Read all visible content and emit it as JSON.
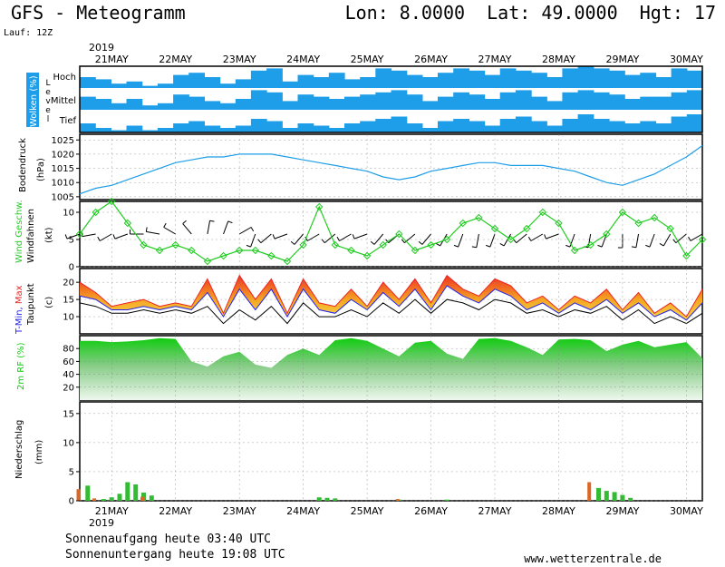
{
  "header": {
    "title": "GFS - Meteogramm",
    "location": "Lon: 8.0000  Lat: 49.0000  Hgt: 17",
    "run": "Lauf: 12Z"
  },
  "footer": {
    "sunrise": "Sonnenaufgang heute 03:40 UTC",
    "sunset": "Sonnenuntergang heute 19:08 UTC",
    "site": "www.wetterzentrale.de"
  },
  "colors": {
    "cloud": "#1e9ee8",
    "pressure": "#1e9ee8",
    "wind": "#22cc22",
    "tmin": "#2222ee",
    "tmax": "#ee2222",
    "humidity": "#11cc11",
    "precip_rain": "#33bb33",
    "precip_conv": "#dd6622",
    "grid": "#888888"
  },
  "chart_data": [
    {
      "type": "table",
      "id": "date-axis",
      "year_label": "2019",
      "days": [
        "21MAY",
        "22MAY",
        "23MAY",
        "24MAY",
        "25MAY",
        "26MAY",
        "27MAY",
        "28MAY",
        "29MAY",
        "30MAY"
      ],
      "x_range_hours": [
        0,
        234
      ]
    },
    {
      "type": "heatmap",
      "id": "clouds",
      "ylabel": "Wolken (%)",
      "ylabel_parts": [
        "Wolken",
        " (%)"
      ],
      "level_label": "Level",
      "level_label_letters": [
        "L",
        "e",
        "v",
        "e",
        "l"
      ],
      "levels": [
        "Hoch",
        "Mittel",
        "Tief"
      ],
      "hours": [
        0,
        6,
        12,
        18,
        24,
        30,
        36,
        42,
        48,
        54,
        60,
        66,
        72,
        78,
        84,
        90,
        96,
        102,
        108,
        114,
        120,
        126,
        132,
        138,
        144,
        150,
        156,
        162,
        168,
        174,
        180,
        186,
        192,
        198,
        204,
        210,
        216,
        222,
        228,
        234
      ],
      "coverage": {
        "Hoch": [
          0.5,
          0.4,
          0.2,
          0.3,
          0.1,
          0.2,
          0.6,
          0.7,
          0.5,
          0.2,
          0.4,
          0.8,
          0.9,
          0.3,
          0.6,
          0.5,
          0.7,
          0.4,
          0.5,
          0.9,
          0.8,
          0.6,
          0.5,
          0.7,
          0.9,
          0.8,
          0.6,
          0.9,
          0.8,
          0.7,
          0.5,
          0.9,
          1.0,
          0.9,
          0.8,
          0.6,
          0.7,
          0.5,
          0.9,
          0.8
        ],
        "Mittel": [
          0.6,
          0.5,
          0.3,
          0.5,
          0.2,
          0.3,
          0.7,
          0.6,
          0.4,
          0.3,
          0.5,
          0.9,
          0.8,
          0.4,
          0.7,
          0.6,
          0.5,
          0.6,
          0.7,
          0.8,
          0.9,
          0.7,
          0.4,
          0.6,
          0.8,
          0.7,
          0.5,
          0.8,
          0.9,
          0.6,
          0.4,
          0.8,
          0.9,
          0.8,
          0.7,
          0.5,
          0.6,
          0.6,
          0.8,
          0.9
        ],
        "Tief": [
          0.4,
          0.2,
          0.1,
          0.3,
          0.1,
          0.2,
          0.4,
          0.5,
          0.3,
          0.2,
          0.3,
          0.6,
          0.5,
          0.2,
          0.4,
          0.3,
          0.2,
          0.4,
          0.5,
          0.6,
          0.7,
          0.4,
          0.2,
          0.5,
          0.6,
          0.5,
          0.3,
          0.6,
          0.7,
          0.5,
          0.3,
          0.6,
          0.8,
          0.6,
          0.5,
          0.4,
          0.5,
          0.4,
          0.7,
          0.8
        ]
      }
    },
    {
      "type": "line",
      "id": "pressure",
      "ylabel": "Bodendruck",
      "ylabel2": "(hPa)",
      "ylim": [
        1004,
        1027
      ],
      "yticks": [
        1005,
        1010,
        1015,
        1020,
        1025
      ],
      "grid": true,
      "x": [
        0,
        6,
        12,
        18,
        24,
        30,
        36,
        42,
        48,
        54,
        60,
        66,
        72,
        78,
        84,
        90,
        96,
        102,
        108,
        114,
        120,
        126,
        132,
        138,
        144,
        150,
        156,
        162,
        168,
        174,
        180,
        186,
        192,
        198,
        204,
        210,
        216,
        222,
        228,
        234
      ],
      "series": [
        {
          "values": [
            1006,
            1008,
            1009,
            1011,
            1013,
            1015,
            1017,
            1018,
            1019,
            1019,
            1020,
            1020,
            1020,
            1019,
            1018,
            1017,
            1016,
            1015,
            1014,
            1012,
            1011,
            1012,
            1014,
            1015,
            1016,
            1017,
            1017,
            1016,
            1016,
            1016,
            1015,
            1014,
            1012,
            1010,
            1009,
            1011,
            1013,
            1016,
            1019,
            1023
          ]
        }
      ]
    },
    {
      "type": "line",
      "id": "wind",
      "ylabel": "Wind Geschw.",
      "ylabel2": "Windfahnen",
      "ylabel3": "(kt)",
      "ylim": [
        0,
        12
      ],
      "yticks": [
        0,
        5,
        10
      ],
      "grid": true,
      "x": [
        0,
        6,
        12,
        18,
        24,
        30,
        36,
        42,
        48,
        54,
        60,
        66,
        72,
        78,
        84,
        90,
        96,
        102,
        108,
        114,
        120,
        126,
        132,
        138,
        144,
        150,
        156,
        162,
        168,
        174,
        180,
        186,
        192,
        198,
        204,
        210,
        216,
        222,
        228,
        234
      ],
      "series": [
        {
          "name": "Wind Geschw.",
          "values": [
            6,
            10,
            12,
            8,
            4,
            3,
            4,
            3,
            1,
            2,
            3,
            3,
            2,
            1,
            4,
            11,
            4,
            3,
            2,
            4,
            6,
            3,
            4,
            5,
            8,
            9,
            7,
            5,
            7,
            10,
            8,
            3,
            4,
            6,
            10,
            8,
            9,
            7,
            2,
            5
          ]
        }
      ],
      "barbs_direction_deg": [
        250,
        260,
        240,
        250,
        270,
        280,
        300,
        320,
        10,
        20,
        60,
        200,
        230,
        250,
        220,
        240,
        230,
        240,
        250,
        220,
        230,
        230,
        220,
        210,
        200,
        190,
        200,
        210,
        230,
        240,
        250,
        200,
        190,
        200,
        180,
        190,
        200,
        210,
        230,
        240
      ]
    },
    {
      "type": "area",
      "id": "temperature",
      "ylabel": "T-Min, Max",
      "ylabel_parts": [
        "T-Min",
        ", ",
        "Max"
      ],
      "ylabel2": "Taupunkt",
      "ylabel3": "(c)",
      "ylim": [
        5,
        24
      ],
      "yticks": [
        10,
        15,
        20
      ],
      "grid": true,
      "x": [
        0,
        6,
        12,
        18,
        24,
        30,
        36,
        42,
        48,
        54,
        60,
        66,
        72,
        78,
        84,
        90,
        96,
        102,
        108,
        114,
        120,
        126,
        132,
        138,
        144,
        150,
        156,
        162,
        168,
        174,
        180,
        186,
        192,
        198,
        204,
        210,
        216,
        222,
        228,
        234
      ],
      "series": [
        {
          "name": "T-Max",
          "values": [
            20,
            17,
            13,
            14,
            15,
            13,
            14,
            13,
            21,
            11,
            22,
            15,
            21,
            11,
            21,
            14,
            13,
            18,
            13,
            20,
            15,
            21,
            14,
            22,
            18,
            16,
            21,
            19,
            14,
            16,
            12,
            16,
            14,
            18,
            12,
            17,
            11,
            14,
            10,
            18
          ]
        },
        {
          "name": "T-Min",
          "values": [
            16,
            15,
            12,
            12,
            13,
            12,
            13,
            12,
            17,
            10,
            18,
            12,
            18,
            10,
            18,
            12,
            11,
            15,
            12,
            17,
            13,
            18,
            12,
            19,
            16,
            14,
            18,
            16,
            12,
            14,
            11,
            14,
            12,
            15,
            11,
            14,
            10,
            12,
            9,
            14
          ]
        },
        {
          "name": "Taupunkt",
          "values": [
            14,
            13,
            11,
            11,
            12,
            11,
            12,
            11,
            13,
            8,
            12,
            9,
            13,
            8,
            14,
            10,
            10,
            12,
            10,
            14,
            11,
            15,
            11,
            15,
            14,
            12,
            15,
            14,
            11,
            12,
            10,
            12,
            11,
            13,
            9,
            12,
            8,
            10,
            8,
            11
          ]
        }
      ]
    },
    {
      "type": "area",
      "id": "humidity",
      "ylabel": "2m RF (%)",
      "ylim": [
        0,
        100
      ],
      "yticks": [
        20,
        40,
        60,
        80
      ],
      "grid": true,
      "x": [
        0,
        6,
        12,
        18,
        24,
        30,
        36,
        42,
        48,
        54,
        60,
        66,
        72,
        78,
        84,
        90,
        96,
        102,
        108,
        114,
        120,
        126,
        132,
        138,
        144,
        150,
        156,
        162,
        168,
        174,
        180,
        186,
        192,
        198,
        204,
        210,
        216,
        222,
        228,
        234
      ],
      "series": [
        {
          "values": [
            92,
            92,
            90,
            91,
            93,
            96,
            95,
            60,
            52,
            68,
            75,
            55,
            50,
            70,
            80,
            70,
            93,
            96,
            92,
            80,
            68,
            89,
            92,
            72,
            64,
            95,
            96,
            92,
            82,
            70,
            94,
            95,
            93,
            76,
            86,
            92,
            82,
            86,
            90,
            65
          ]
        }
      ]
    },
    {
      "type": "bar",
      "id": "precipitation",
      "ylabel": "Niederschlag",
      "ylabel2": "(mm)",
      "ylim": [
        0,
        17
      ],
      "yticks": [
        0,
        5,
        10,
        15
      ],
      "grid": true,
      "x": [
        0,
        3,
        6,
        9,
        12,
        15,
        18,
        21,
        24,
        27,
        90,
        93,
        96,
        120,
        138,
        192,
        195,
        198,
        201,
        204,
        207
      ],
      "series": [
        {
          "name": "rain",
          "values": [
            0,
            2.6,
            0,
            0.3,
            0.6,
            1.2,
            3.2,
            2.8,
            1.4,
            0.9,
            0.6,
            0.5,
            0.4,
            0.2,
            0.2,
            0,
            2.2,
            1.7,
            1.5,
            1.0,
            0.5
          ]
        },
        {
          "name": "conv",
          "values": [
            2.0,
            0,
            0.4,
            0,
            0,
            0,
            0,
            0,
            0.7,
            0,
            0,
            0,
            0,
            0.3,
            0,
            3.2,
            0,
            0,
            0,
            0,
            0
          ]
        }
      ]
    }
  ]
}
